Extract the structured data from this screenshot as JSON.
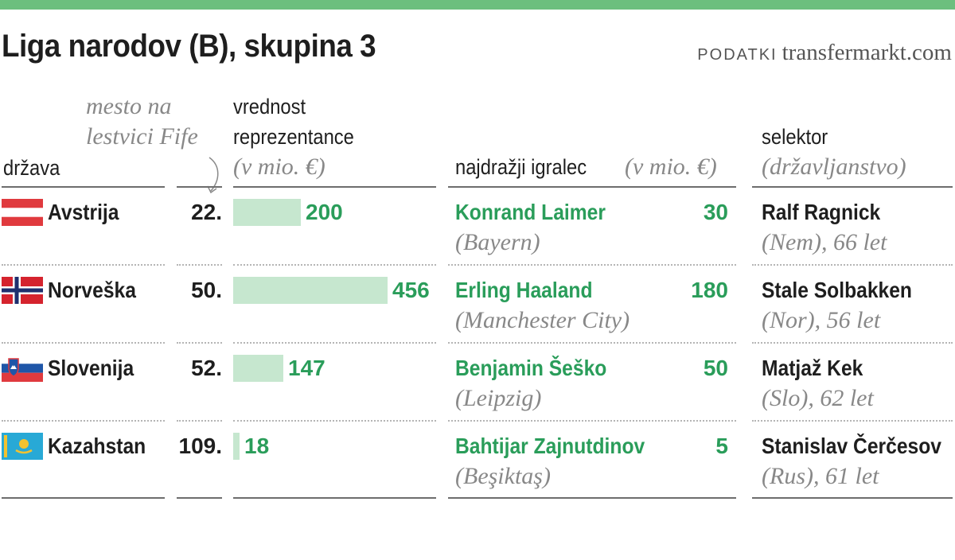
{
  "title": "Liga narodov (B), skupina 3",
  "source": {
    "label": "PODATKI",
    "site": "transfermarkt.com"
  },
  "colors": {
    "top_bar": "#6cbf7e",
    "bar_fill": "#c6e7cf",
    "accent_green": "#2a9d5a",
    "text_dark": "#1e1e1e",
    "text_gray": "#888888"
  },
  "headers": {
    "country": "država",
    "fifa_rank": [
      "mesto na",
      "lestvici Fife"
    ],
    "team_value": [
      "vrednost",
      "reprezentance",
      "(v mio. €)"
    ],
    "top_player": "najdražji igralec",
    "top_player_unit": "(v mio. €)",
    "coach": [
      "selektor",
      "(državljanstvo)"
    ]
  },
  "chart_data": {
    "type": "table",
    "columns": [
      "država",
      "mesto na lestvici Fife",
      "vrednost reprezentance (v mio. €)",
      "najdražji igralec (v mio. €)",
      "selektor (državljanstvo)"
    ],
    "value_bar_max": 456,
    "rows": [
      {
        "country": "Avstrija",
        "flag": "austria-flag",
        "rank": "22.",
        "value": 200,
        "value_label": "200",
        "player": "Konrand Laimer",
        "club": "(Bayern)",
        "player_value": "30",
        "coach": "Ralf Ragnick",
        "coach_info": "(Nem), 66 let"
      },
      {
        "country": "Norveška",
        "flag": "norway-flag",
        "rank": "50.",
        "value": 456,
        "value_label": "456",
        "player": "Erling Haaland",
        "club": "(Manchester City)",
        "player_value": "180",
        "coach": "Stale Solbakken",
        "coach_info": "(Nor), 56 let"
      },
      {
        "country": "Slovenija",
        "flag": "slovenia-flag",
        "rank": "52.",
        "value": 147,
        "value_label": "147",
        "player": "Benjamin Šeško",
        "club": "(Leipzig)",
        "player_value": "50",
        "coach": "Matjaž Kek",
        "coach_info": "(Slo), 62 let"
      },
      {
        "country": "Kazahstan",
        "flag": "kazakhstan-flag",
        "rank": "109.",
        "value": 18,
        "value_label": "18",
        "player": "Bahtijar Zajnutdinov",
        "club": "(Beşiktaş)",
        "player_value": "5",
        "coach": "Stanislav Čerčesov",
        "coach_info": "(Rus), 61 let"
      }
    ]
  }
}
